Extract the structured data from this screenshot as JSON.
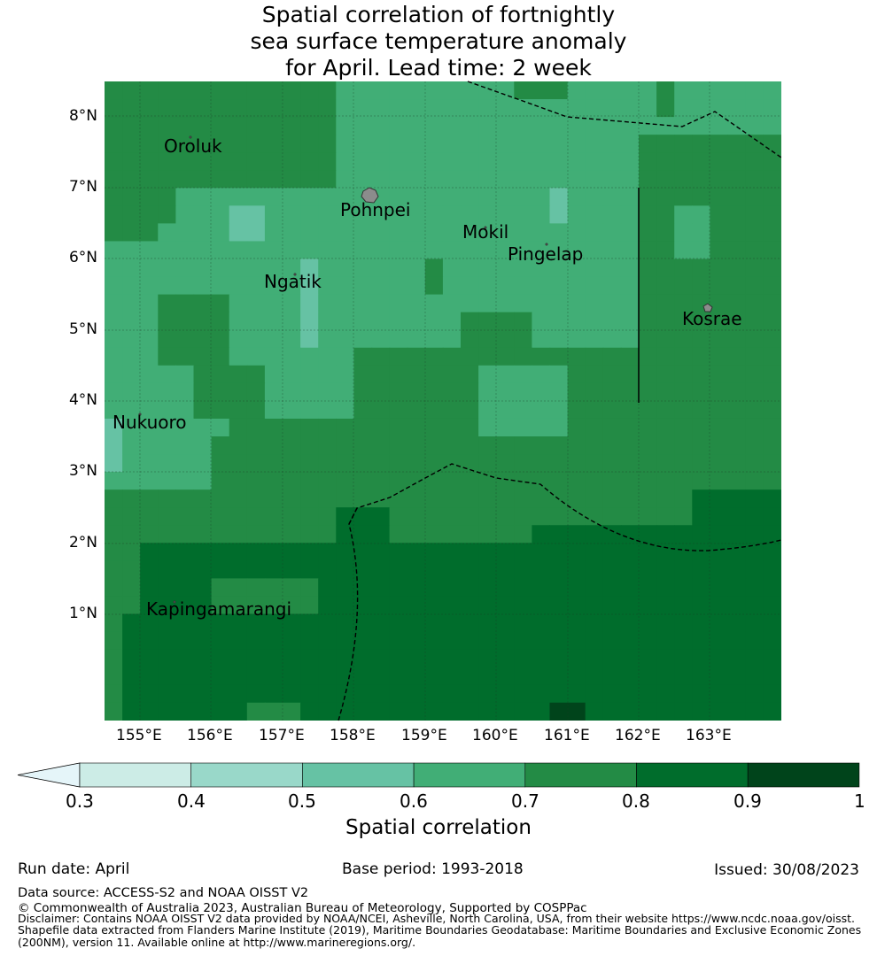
{
  "title": {
    "line1": "Spatial correlation of fortnightly",
    "line2": "sea surface temperature anomaly",
    "line3": "for April. Lead time: 2 week"
  },
  "map": {
    "lat_ticks": [
      "8°N",
      "7°N",
      "6°N",
      "5°N",
      "4°N",
      "3°N",
      "2°N",
      "1°N"
    ],
    "lon_ticks": [
      "155°E",
      "156°E",
      "157°E",
      "158°E",
      "159°E",
      "160°E",
      "161°E",
      "162°E",
      "163°E"
    ],
    "places": [
      {
        "name": "Oroluk",
        "lat": 7.55,
        "lon": 155.3
      },
      {
        "name": "Pohnpei",
        "lat": 6.7,
        "lon": 157.8
      },
      {
        "name": "Mokil",
        "lat": 6.3,
        "lon": 159.5
      },
      {
        "name": "Pingelap",
        "lat": 6.0,
        "lon": 160.15
      },
      {
        "name": "Ngatik",
        "lat": 5.6,
        "lon": 156.9
      },
      {
        "name": "Kosrae",
        "lat": 5.1,
        "lon": 162.65
      },
      {
        "name": "Nukuoro",
        "lat": 3.6,
        "lon": 154.6
      },
      {
        "name": "Kapingamarangi",
        "lat": 1.0,
        "lon": 155.1
      }
    ]
  },
  "colorbar": {
    "ticks": [
      "0.3",
      "0.4",
      "0.5",
      "0.6",
      "0.7",
      "0.8",
      "0.9",
      "1"
    ],
    "colors": [
      "#ccece6",
      "#99d8c9",
      "#66c2a4",
      "#41ae76",
      "#238b45",
      "#006d2c",
      "#00441b"
    ],
    "under_color": "#e5f5f9",
    "label": "Spatial correlation"
  },
  "footer": {
    "run_date": "Run date: April",
    "base_period": "Base period: 1993-2018",
    "issued": "Issued: 30/08/2023",
    "data_source": "Data source: ACCESS-S2 and NOAA OISST V2",
    "copyright": "© Commonwealth of Australia 2023, Australian Bureau of Meteorology, Supported by COSPPac",
    "disclaimer1": "Disclaimer: Contains NOAA OISST V2 data provided by NOAA/NCEI, Asheville, North Carolina, USA, from their website https://www.ncdc.noaa.gov/oisst.",
    "disclaimer2": "Shapefile data extracted from Flanders Marine Institute (2019), Maritime Boundaries Geodatabase: Maritime Boundaries and Exclusive Economic Zones",
    "disclaimer3": "(200NM), version 11. Available online at http://www.marineregions.org/."
  }
}
